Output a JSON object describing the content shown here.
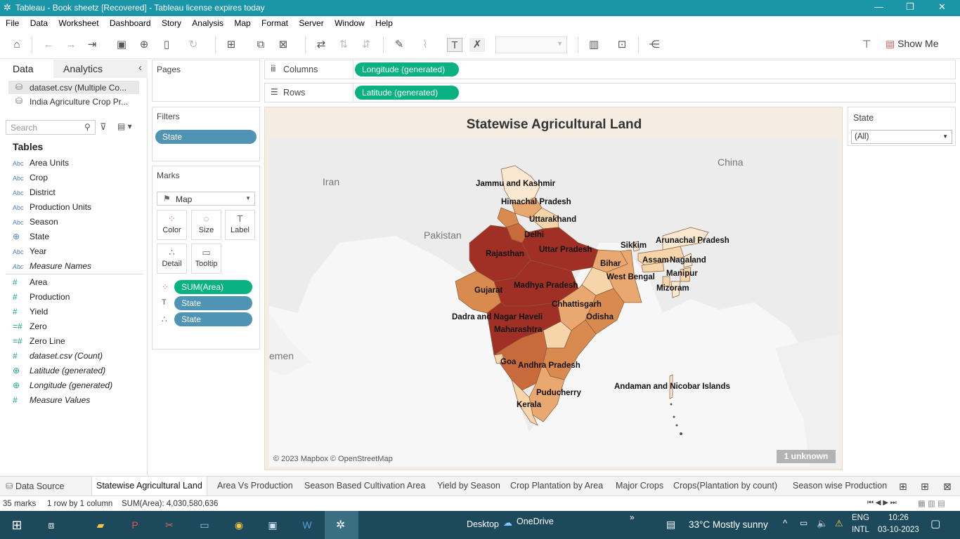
{
  "window": {
    "title": "Tableau - Book sheetz [Recovered] - Tableau license expires today",
    "controls": {
      "minimize": "—",
      "restore": "❐",
      "close": "✕"
    }
  },
  "menu": [
    "File",
    "Data",
    "Worksheet",
    "Dashboard",
    "Story",
    "Analysis",
    "Map",
    "Format",
    "Server",
    "Window",
    "Help"
  ],
  "toolbar": {
    "show_me": "Show Me",
    "icons": [
      "home-icon",
      "back-icon",
      "forward-icon",
      "redo-icon",
      "save-icon",
      "new-datasource-icon",
      "pause-icon",
      "refresh-icon",
      "new-worksheet-icon",
      "duplicate-icon",
      "clear-icon",
      "swap-icon",
      "sort-asc-icon",
      "sort-desc-icon",
      "highlight-icon",
      "group-icon",
      "text-labels-icon",
      "fix-axes-icon",
      "fit-dropdown",
      "show-cards-icon",
      "presentation-icon",
      "share-icon",
      "pin-icon"
    ]
  },
  "data_pane": {
    "tab_data": "Data",
    "tab_analytics": "Analytics",
    "collapse_arrow": "‹",
    "datasources": [
      "dataset.csv (Multiple Co...",
      "India Agriculture Crop Pr..."
    ],
    "search_placeholder": "Search",
    "tables_heading": "Tables",
    "dimensions": [
      {
        "icon": "Abc",
        "name": "Area Units"
      },
      {
        "icon": "Abc",
        "name": "Crop"
      },
      {
        "icon": "Abc",
        "name": "District"
      },
      {
        "icon": "Abc",
        "name": "Production Units"
      },
      {
        "icon": "Abc",
        "name": "Season"
      },
      {
        "icon": "⊕",
        "name": "State"
      },
      {
        "icon": "Abc",
        "name": "Year"
      },
      {
        "icon": "Abc",
        "name": "Measure Names"
      }
    ],
    "measures": [
      {
        "icon": "#",
        "name": "Area"
      },
      {
        "icon": "#",
        "name": "Production"
      },
      {
        "icon": "#",
        "name": "Yield"
      },
      {
        "icon": "=#",
        "name": "Zero"
      },
      {
        "icon": "=#",
        "name": "Zero Line"
      },
      {
        "icon": "#",
        "name": "dataset.csv (Count)"
      },
      {
        "icon": "⊕",
        "name": "Latitude (generated)"
      },
      {
        "icon": "⊕",
        "name": "Longitude (generated)"
      },
      {
        "icon": "#",
        "name": "Measure Values"
      }
    ]
  },
  "shelves": {
    "pages": "Pages",
    "filters": "Filters",
    "filter_pill": "State",
    "columns_label": "Columns",
    "rows_label": "Rows",
    "columns_pill": "Longitude (generated)",
    "rows_pill": "Latitude (generated)"
  },
  "marks": {
    "heading": "Marks",
    "type": "Map",
    "buttons": [
      "Color",
      "Size",
      "Label",
      "Detail",
      "Tooltip"
    ],
    "pills": [
      "SUM(Area)",
      "State",
      "State"
    ]
  },
  "view": {
    "title": "Statewise Agricultural Land",
    "attribution": "© 2023 Mapbox © OpenStreetMap",
    "unknown_badge": "1 unknown",
    "geo_labels": [
      "Iran",
      "Pakistan",
      "China",
      "emen"
    ],
    "state_labels": [
      "Jammu and Kashmir",
      "Himachal Pradesh",
      "Uttarakhand",
      "Delhi",
      "Rajasthan",
      "Uttar Pradesh",
      "Sikkim",
      "Arunachal Pradesh",
      "Assam",
      "Nagaland",
      "Manipur",
      "Mizoram",
      "Bihar",
      "West Bengal",
      "Gujarat",
      "Madhya Pradesh",
      "Chhattisgarh",
      "Odisha",
      "Dadra and Nagar Haveli",
      "Maharashtra",
      "Goa",
      "Andhra Pradesh",
      "Puducherry",
      "Kerala",
      "Andaman and Nicobar Islands"
    ],
    "colors": {
      "dark": "#a03025",
      "mid": "#d88a4f",
      "light": "#f6d5aa",
      "pale": "#fbe8d0"
    }
  },
  "state_filter": {
    "title": "State",
    "value": "(All)"
  },
  "sheet_tabs": [
    "Data Source",
    "Statewise Agricultural Land",
    "Area Vs Production",
    "Season Based Cultivation Area",
    "Yield by Season",
    "Crop Plantation by Area",
    "Major Crops",
    "Crops(Plantation by count)",
    "Season wise Production"
  ],
  "status": {
    "marks": "35 marks",
    "dims": "1 row by 1 column",
    "sum": "SUM(Area): 4,030,580,636"
  },
  "taskbar": {
    "desktop": "Desktop",
    "onedrive": "OneDrive",
    "weather": "33°C  Mostly sunny",
    "lang1": "ENG",
    "lang2": "INTL",
    "time": "10:26",
    "date": "03-10-2023"
  }
}
